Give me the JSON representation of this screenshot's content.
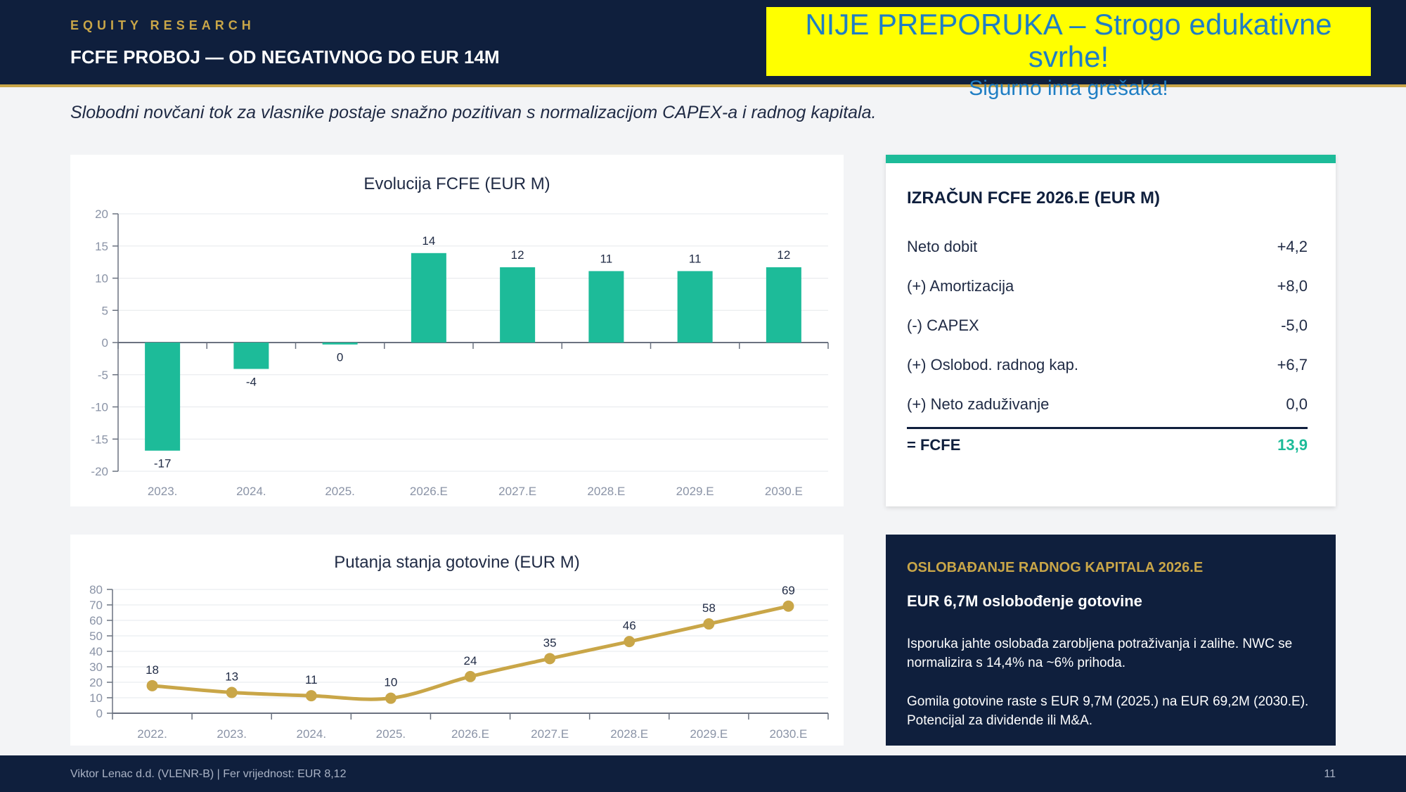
{
  "header": {
    "kicker": "EQUITY RESEARCH",
    "title": "FCFE PROBOJ — OD NEGATIVNOG DO EUR 14M",
    "disclaimer_line1": "NIJE PREPORUKA – Strogo edukativne svrhe!",
    "disclaimer_line2": "Sigurno ima grešaka!"
  },
  "subtitle": "Slobodni novčani tok za vlasnike postaje snažno pozitivan s normalizacijom CAPEX-a i radnog kapitala.",
  "chart_data": [
    {
      "type": "bar",
      "title": "Evolucija FCFE (EUR M)",
      "categories": [
        "2023.",
        "2024.",
        "2025.",
        "2026.E",
        "2027.E",
        "2028.E",
        "2029.E",
        "2030.E"
      ],
      "values": [
        -16.8,
        -4.1,
        -0.3,
        13.9,
        11.7,
        11.1,
        11.1,
        11.7
      ],
      "data_labels": [
        "-17",
        "-4",
        "0",
        "14",
        "12",
        "11",
        "11",
        "12"
      ],
      "ylim": [
        -20,
        20
      ],
      "yticks": [
        20,
        15,
        10,
        5,
        0,
        -5,
        -10,
        -15,
        -20
      ],
      "color": "#1dbb99",
      "grid": true
    },
    {
      "type": "line",
      "title": "Putanja stanja gotovine (EUR M)",
      "categories": [
        "2022.",
        "2023.",
        "2024.",
        "2025.",
        "2026.E",
        "2027.E",
        "2028.E",
        "2029.E",
        "2030.E"
      ],
      "values": [
        17.8,
        13.4,
        11.3,
        9.7,
        23.7,
        35.3,
        46.3,
        57.7,
        69.2
      ],
      "data_labels": [
        "18",
        "13",
        "11",
        "10",
        "24",
        "35",
        "46",
        "58",
        "69"
      ],
      "ylim": [
        0,
        80
      ],
      "yticks": [
        80,
        70,
        60,
        50,
        40,
        30,
        20,
        10,
        0
      ],
      "color": "#c9a648",
      "grid": true
    }
  ],
  "calc": {
    "title": "IZRAČUN FCFE 2026.E (EUR M)",
    "rows": [
      {
        "label": "Neto dobit",
        "value": "+4,2"
      },
      {
        "label": "(+) Amortizacija",
        "value": "+8,0"
      },
      {
        "label": "(-) CAPEX",
        "value": "-5,0"
      },
      {
        "label": "(+) Oslobod. radnog kap.",
        "value": "+6,7"
      },
      {
        "label": "(+) Neto zaduživanje",
        "value": "0,0"
      }
    ],
    "total": {
      "label": "= FCFE",
      "value": "13,9"
    }
  },
  "info": {
    "title": "OSLOBAĐANJE RADNOG KAPITALA 2026.E",
    "subtitle": "EUR 6,7M oslobođenje gotovine",
    "p1": "Isporuka jahte oslobađa zarobljena potraživanja i zalihe. NWC se normalizira s 14,4% na ~6% prihoda.",
    "p2": "Gomila gotovine raste s EUR 9,7M (2025.) na EUR 69,2M (2030.E). Potencijal za dividende ili M&A."
  },
  "footer": {
    "left": "Viktor Lenac d.d. (VLENR-B)  |  Fer vrijednost: EUR 8,12",
    "page": "11"
  }
}
